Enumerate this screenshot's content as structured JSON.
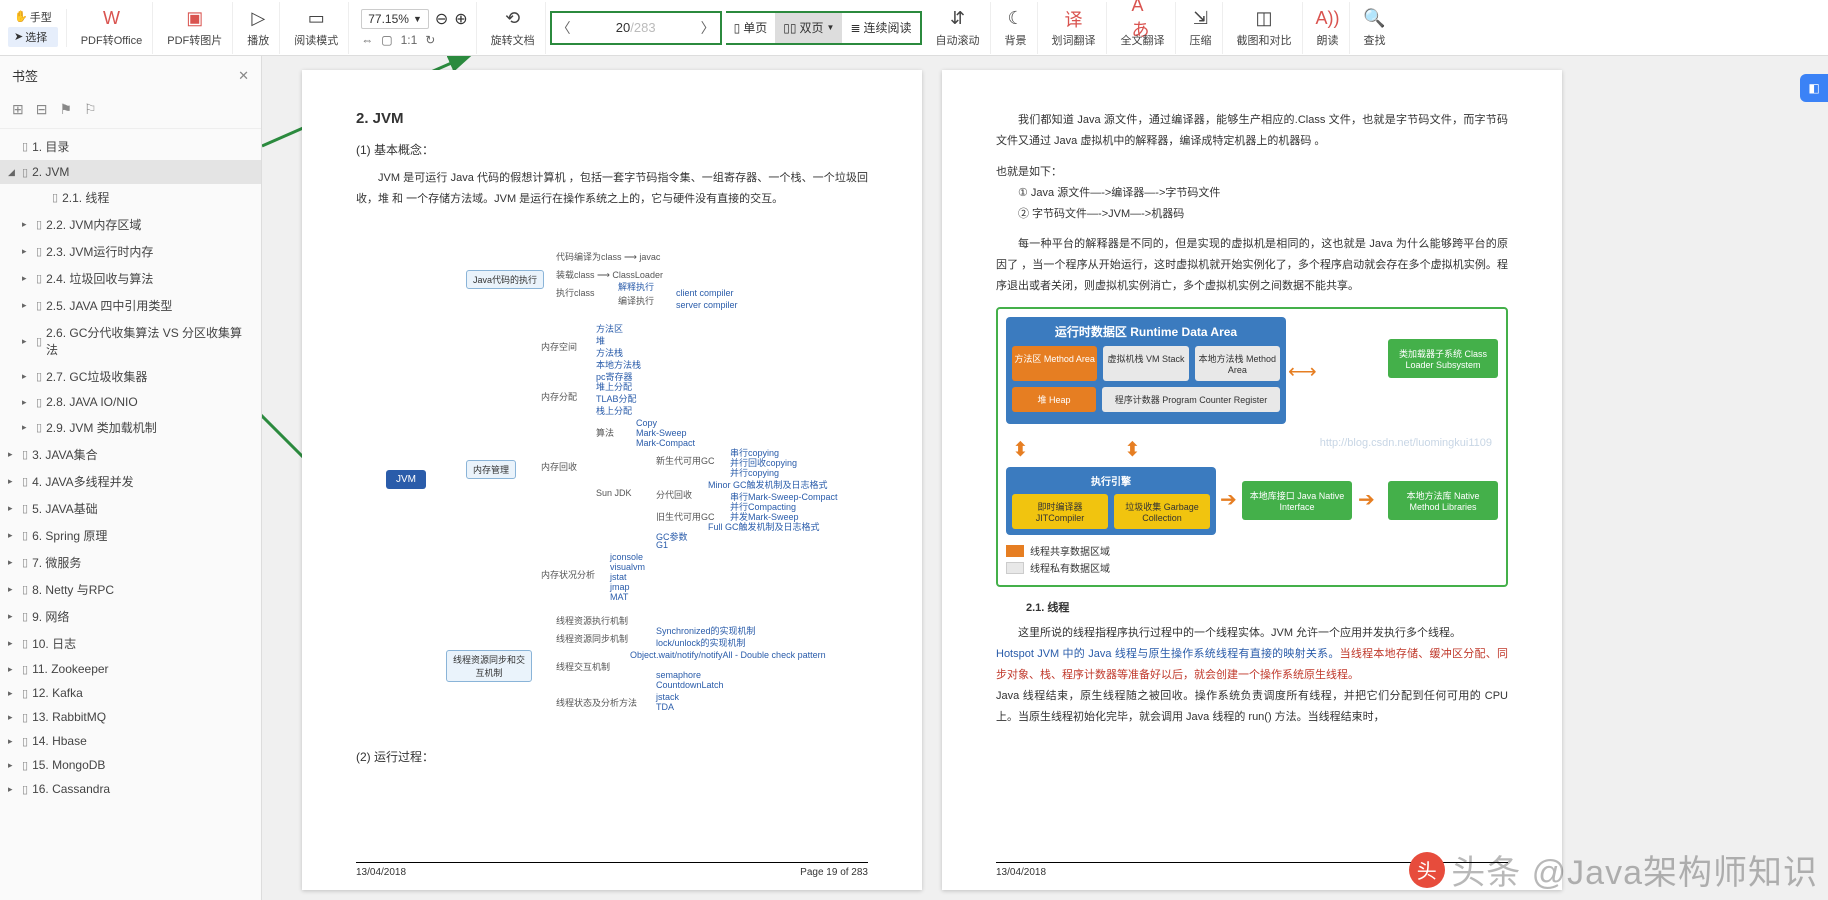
{
  "toolbar": {
    "left": {
      "hand": "手型",
      "select": "选择"
    },
    "groups": [
      {
        "icon": "⎘",
        "label": "PDF转Office",
        "orange": true
      },
      {
        "icon": "🖼",
        "label": "PDF转图片",
        "orange": true
      },
      {
        "icon": "▶",
        "label": "播放"
      },
      {
        "icon": "▭",
        "label": "阅读模式"
      }
    ],
    "zoom": {
      "value": "77.15%",
      "minus": "−",
      "plus": "＋"
    },
    "rotate": "旋转文档",
    "page": {
      "current": "20",
      "total": "/283"
    },
    "views": {
      "single": "单页",
      "double": "双页",
      "cont": "连续阅读"
    },
    "scroll": "自动滚动",
    "right": [
      {
        "icon": "☾",
        "label": "背景"
      },
      {
        "icon": "文",
        "label": "划词翻译",
        "orange": true
      },
      {
        "icon": "A",
        "label": "全文翻译",
        "orange": true
      },
      {
        "icon": "⇲",
        "label": "压缩"
      },
      {
        "icon": "▦",
        "label": "截图和对比"
      },
      {
        "icon": "A))",
        "label": "朗读",
        "orange": true
      },
      {
        "icon": "🔍",
        "label": "查找"
      }
    ]
  },
  "sidebar": {
    "title": "书签",
    "tree": [
      {
        "lvl": 0,
        "tri": "",
        "txt": "1. 目录"
      },
      {
        "lvl": 0,
        "tri": "◢",
        "txt": "2. JVM",
        "sel": true
      },
      {
        "lvl": 2,
        "tri": "",
        "txt": "2.1. 线程"
      },
      {
        "lvl": 1,
        "tri": "▸",
        "txt": "2.2. JVM内存区域"
      },
      {
        "lvl": 1,
        "tri": "▸",
        "txt": "2.3. JVM运行时内存"
      },
      {
        "lvl": 1,
        "tri": "▸",
        "txt": "2.4. 垃圾回收与算法"
      },
      {
        "lvl": 1,
        "tri": "▸",
        "txt": "2.5. JAVA 四中引用类型"
      },
      {
        "lvl": 1,
        "tri": "▸",
        "txt": "2.6. GC分代收集算法  VS 分区收集算法"
      },
      {
        "lvl": 1,
        "tri": "▸",
        "txt": "2.7. GC垃圾收集器"
      },
      {
        "lvl": 1,
        "tri": "▸",
        "txt": "2.8.  JAVA IO/NIO"
      },
      {
        "lvl": 1,
        "tri": "▸",
        "txt": "2.9. JVM 类加载机制"
      },
      {
        "lvl": 0,
        "tri": "▸",
        "txt": "3. JAVA集合"
      },
      {
        "lvl": 0,
        "tri": "▸",
        "txt": "4. JAVA多线程并发"
      },
      {
        "lvl": 0,
        "tri": "▸",
        "txt": "5. JAVA基础"
      },
      {
        "lvl": 0,
        "tri": "▸",
        "txt": "6. Spring 原理"
      },
      {
        "lvl": 0,
        "tri": "▸",
        "txt": "7.   微服务"
      },
      {
        "lvl": 0,
        "tri": "▸",
        "txt": "8. Netty 与RPC"
      },
      {
        "lvl": 0,
        "tri": "▸",
        "txt": "9. 网络"
      },
      {
        "lvl": 0,
        "tri": "▸",
        "txt": "10. 日志"
      },
      {
        "lvl": 0,
        "tri": "▸",
        "txt": "11. Zookeeper"
      },
      {
        "lvl": 0,
        "tri": "▸",
        "txt": "12. Kafka"
      },
      {
        "lvl": 0,
        "tri": "▸",
        "txt": "13. RabbitMQ"
      },
      {
        "lvl": 0,
        "tri": "▸",
        "txt": "14. Hbase"
      },
      {
        "lvl": 0,
        "tri": "▸",
        "txt": "15. MongoDB"
      },
      {
        "lvl": 0,
        "tri": "▸",
        "txt": "16. Cassandra"
      }
    ]
  },
  "pageL": {
    "h": "2. JVM",
    "s1": "(1) 基本概念：",
    "p1": "JVM 是可运行 Java 代码的假想计算机 ，包括一套字节码指令集、一组寄存器、一个栈、一个垃圾回收，堆 和 一个存储方法域。JVM 是运行在操作系统之上的，它与硬件没有直接的交互。",
    "s2": "(2) 运行过程：",
    "foot_l": "13/04/2018",
    "foot_r": "Page 19 of 283",
    "mm": {
      "root": "JVM",
      "n1": "Java代码的执行",
      "n2": "内存管理",
      "n3": "线程资源同步和交互机制",
      "sub": {
        "a": "代码编译为class",
        "a2": "javac",
        "b": "装载class",
        "b2": "ClassLoader",
        "c": "执行class",
        "c2": "解释执行",
        "c3": "编译执行",
        "c4": "client compiler",
        "c5": "server compiler",
        "d": "内存空间",
        "d1": "方法区",
        "d2": "堆",
        "d3": "方法栈",
        "d4": "本地方法栈",
        "d5": "pc寄存器",
        "e": "内存分配",
        "e1": "堆上分配",
        "e2": "TLAB分配",
        "e3": "栈上分配",
        "f": "内存回收",
        "f1": "算法",
        "f2": "Sun JDK",
        "f3": "Copy",
        "f4": "Mark-Sweep",
        "f5": "Mark-Compact",
        "g": "新生代可用GC",
        "g1": "串行copying",
        "g2": "并行回收copying",
        "g3": "并行copying",
        "h": "分代回收",
        "h1": "Minor GC触发机制及日志格式",
        "h2": "串行Mark-Sweep-Compact",
        "h3": "并行Compacting",
        "h4": "并发Mark-Sweep",
        "i": "旧生代可用GC",
        "i1": "Full GC触发机制及日志格式",
        "j": "GC参数",
        "j2": "G1",
        "k": "内存状况分析",
        "k1": "jconsole",
        "k2": "visualvm",
        "k3": "jstat",
        "k4": "jmap",
        "k5": "MAT",
        "l": "线程资源执行机制",
        "m": "线程资源同步机制",
        "m1": "Synchronized的实现机制",
        "m2": "lock/unlock的实现机制",
        "n": "线程交互机制",
        "n1": "Object.wait/notify/notifyAll - Double check pattern",
        "n2": "semaphore",
        "n3": "CountdownLatch",
        "o": "线程状态及分析方法",
        "o1": "jstack",
        "o2": "TDA"
      }
    }
  },
  "pageR": {
    "p1": "我们都知道 Java 源文件，通过编译器，能够生产相应的.Class 文件，也就是字节码文件，而字节码文件又通过 Java 虚拟机中的解释器，编译成特定机器上的机器码 。",
    "p2": "也就是如下：",
    "l1": "① Java 源文件—->编译器—->字节码文件",
    "l2": "② 字节码文件—->JVM—->机器码",
    "p3": "每一种平台的解释器是不同的，但是实现的虚拟机是相同的，这也就是 Java 为什么能够跨平台的原因了 ，当一个程序从开始运行，这时虚拟机就开始实例化了，多个程序启动就会存在多个虚拟机实例。程序退出或者关闭，则虚拟机实例消亡，多个虚拟机实例之间数据不能共享。",
    "h21": "2.1. 线程",
    "p4": "这里所说的线程指程序执行过程中的一个线程实体。JVM 允许一个应用并发执行多个线程。",
    "p5a": "Hotspot JVM 中的 Java 线程与原生操作系统线程有直接的映射关系。",
    "p5b": "当线程本地存储、缓冲区分配、同步对象、栈、程序计数器等准备好以后，就会创建一个操作系统原生线程。",
    "p5c": "Java 线程结束，原生线程随之被回收。操作系统负责调度所有线程，并把它们分配到任何可用的 CPU 上。当原生线程初始化完毕，就会调用 Java 线程的 run() 方法。当线程结束时，",
    "foot_l": "13/04/2018",
    "diagram": {
      "rda_title": "运行时数据区  Runtime Data Area",
      "method": "方法区\nMethod Area",
      "vm": "虚拟机栈\nVM Stack",
      "native": "本地方法栈\nMethod Area",
      "heap": "堆\nHeap",
      "pcr": "程序计数器\nProgram Counter Register",
      "cls": "类加载器子系统\nClass Loader Subsystem",
      "eng": "执行引擎",
      "jit": "即时编译器\nJITCompiler",
      "gc": "垃圾收集\nGarbage Collection",
      "jni": "本地库接口\nJava Native Interface",
      "nlib": "本地方法库\nNative Method Libraries",
      "leg1": "线程共享数据区域",
      "leg2": "线程私有数据区域",
      "url": "http://blog.csdn.net/luomingkui1109"
    }
  },
  "water": "头条 @Java架构师知识",
  "colors": {
    "green": "#2b8a3e",
    "blue": "#3b7bbf",
    "orange": "#e67e22",
    "yellow": "#f1c40f",
    "boxgreen": "#44b04a"
  }
}
